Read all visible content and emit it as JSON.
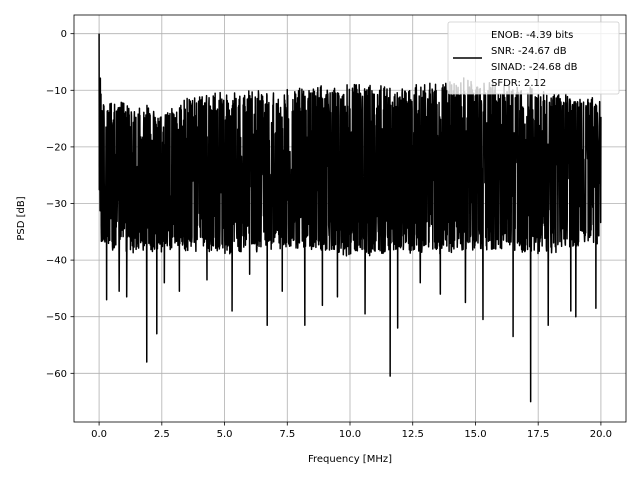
{
  "chart_data": {
    "type": "line",
    "xlabel": "Frequency [MHz]",
    "ylabel": "PSD [dB]",
    "xlim": [
      -1.0,
      21.0
    ],
    "ylim": [
      -68.6,
      3.3
    ],
    "x_ticks": [
      0.0,
      2.5,
      5.0,
      7.5,
      10.0,
      12.5,
      15.0,
      17.5,
      20.0
    ],
    "x_tick_labels": [
      "0.0",
      "2.5",
      "5.0",
      "7.5",
      "10.0",
      "12.5",
      "15.0",
      "17.5",
      "20.0"
    ],
    "y_ticks": [
      0,
      -10,
      -20,
      -30,
      -40,
      -50,
      -60
    ],
    "y_tick_labels": [
      "0",
      "−10",
      "−20",
      "−30",
      "−40",
      "−50",
      "−60"
    ],
    "grid": true,
    "legend_position": "top-right",
    "series": [
      {
        "color": "#000000",
        "description": "noise-like spectrum, peak 0 dB at 0 MHz, band roughly -10 to -37 dB across 0-20 MHz",
        "x_range": [
          0.0,
          20.0
        ],
        "upper_envelope": [
          [
            0.0,
            0.0
          ],
          [
            0.02,
            -2.0
          ],
          [
            0.05,
            -8.0
          ],
          [
            0.1,
            -12.0
          ],
          [
            0.2,
            -13.0
          ],
          [
            1.0,
            -13.0
          ],
          [
            2.5,
            -14.0
          ],
          [
            4.0,
            -11.5
          ],
          [
            6.0,
            -11.0
          ],
          [
            8.0,
            -10.5
          ],
          [
            10.0,
            -9.5
          ],
          [
            12.0,
            -10.5
          ],
          [
            14.5,
            -8.5
          ],
          [
            16.0,
            -9.5
          ],
          [
            18.0,
            -11.0
          ],
          [
            20.0,
            -12.5
          ]
        ],
        "lower_envelope": [
          [
            0.0,
            -28.0
          ],
          [
            0.1,
            -37.0
          ],
          [
            1.0,
            -38.0
          ],
          [
            3.0,
            -37.5
          ],
          [
            5.0,
            -38.0
          ],
          [
            8.0,
            -37.0
          ],
          [
            10.0,
            -38.5
          ],
          [
            12.0,
            -38.0
          ],
          [
            14.0,
            -38.0
          ],
          [
            16.0,
            -37.5
          ],
          [
            18.0,
            -38.0
          ],
          [
            20.0,
            -36.0
          ]
        ],
        "dips": [
          [
            0.3,
            -47.0
          ],
          [
            0.8,
            -45.5
          ],
          [
            1.1,
            -46.5
          ],
          [
            1.9,
            -58.0
          ],
          [
            2.3,
            -53.0
          ],
          [
            2.6,
            -44.0
          ],
          [
            3.2,
            -45.5
          ],
          [
            4.3,
            -43.5
          ],
          [
            5.3,
            -49.0
          ],
          [
            6.0,
            -42.5
          ],
          [
            6.7,
            -51.5
          ],
          [
            7.3,
            -45.5
          ],
          [
            8.2,
            -51.5
          ],
          [
            8.9,
            -48.0
          ],
          [
            9.5,
            -46.5
          ],
          [
            10.6,
            -49.5
          ],
          [
            11.6,
            -60.5
          ],
          [
            11.9,
            -52.0
          ],
          [
            12.8,
            -44.0
          ],
          [
            13.6,
            -46.0
          ],
          [
            14.6,
            -47.5
          ],
          [
            15.3,
            -50.5
          ],
          [
            16.5,
            -53.5
          ],
          [
            17.2,
            -65.0
          ],
          [
            17.9,
            -51.5
          ],
          [
            18.8,
            -49.0
          ],
          [
            19.0,
            -50.0
          ],
          [
            19.8,
            -48.5
          ]
        ]
      }
    ]
  },
  "legend": {
    "lines": [
      "ENOB: -4.39 bits",
      "SNR: -24.67 dB",
      "SINAD: -24.68 dB",
      "SFDR: 2.12"
    ]
  },
  "colors": {
    "series": "#000000",
    "grid": "#b0b0b0",
    "axes": "#000000",
    "legend_border": "#cccccc"
  }
}
